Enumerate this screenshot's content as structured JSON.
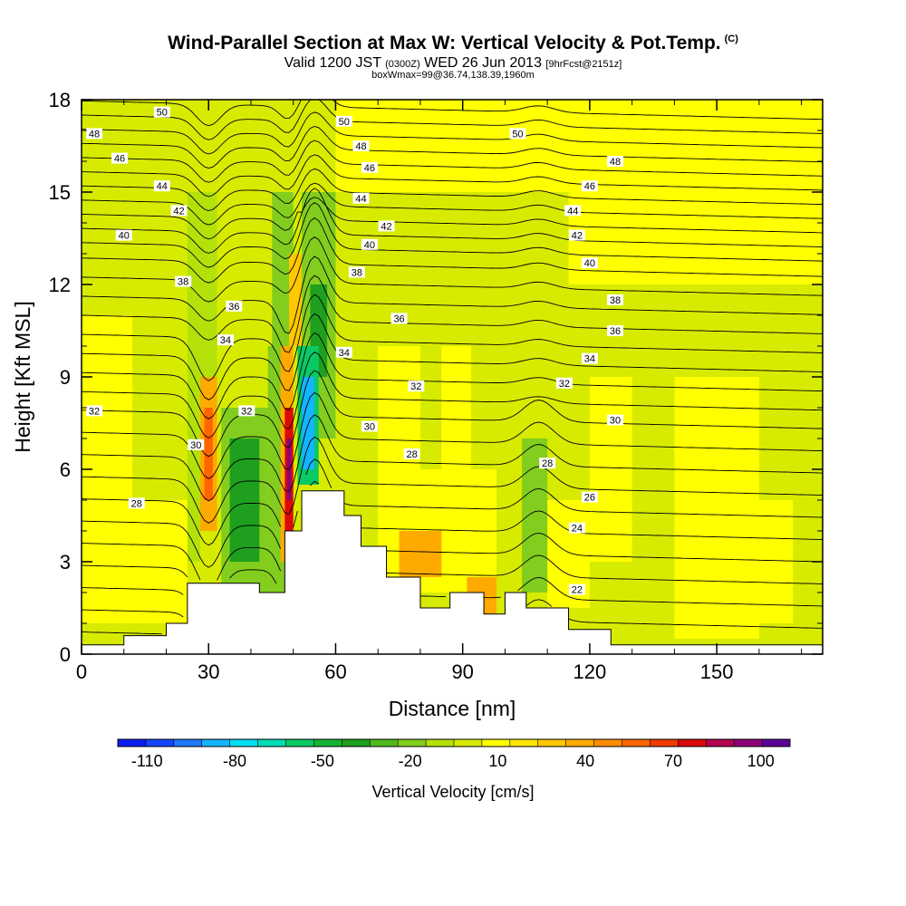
{
  "header": {
    "title": "Wind-Parallel Section at Max W: Vertical Velocity & Pot.Temp.",
    "copyright": "(C)",
    "valid_prefix": "Valid 1200 JST",
    "utc_time": "(0300Z)",
    "valid_date": "WED 26 Jun 2013",
    "forecast": "[9hrFcst@2151z]",
    "box_info": "boxWmax=99@36.74,138.39,1960m"
  },
  "chart_data": {
    "type": "heatmap",
    "xlabel": "Distance [nm]",
    "ylabel": "Height [Kft MSL]",
    "xlim": [
      0,
      175
    ],
    "ylim": [
      0,
      18
    ],
    "x_ticks": [
      0,
      30,
      60,
      90,
      120,
      150
    ],
    "y_ticks": [
      0,
      3,
      6,
      9,
      12,
      15,
      18
    ],
    "colorbar": {
      "title": "Vertical Velocity [cm/s]",
      "tick_labels": [
        "-110",
        "-80",
        "-50",
        "-20",
        "10",
        "40",
        "70",
        "100"
      ],
      "tick_values": [
        -110,
        -80,
        -50,
        -20,
        10,
        40,
        70,
        100
      ],
      "bins": [
        -120,
        -110,
        -100,
        -90,
        -80,
        -70,
        -60,
        -50,
        -40,
        -30,
        -20,
        -10,
        0,
        10,
        20,
        30,
        40,
        50,
        60,
        70,
        80,
        90,
        100,
        110
      ],
      "colors": [
        "#0a1ef0",
        "#1446ff",
        "#1e78ff",
        "#14b4ff",
        "#00dcf0",
        "#00dcb4",
        "#0ac864",
        "#14b432",
        "#1ea01e",
        "#50b91e",
        "#82cd1e",
        "#b4e10a",
        "#d7eb00",
        "#ffff00",
        "#ffe600",
        "#ffc800",
        "#ffaa00",
        "#ff8c00",
        "#ff6400",
        "#f03c00",
        "#dc0a0a",
        "#b40050",
        "#8c0078",
        "#5a0096"
      ]
    },
    "velocity_cells": [
      {
        "x": [
          0,
          175
        ],
        "y": [
          0,
          18
        ],
        "w": 5
      },
      {
        "x": [
          0,
          25
        ],
        "y": [
          1,
          5
        ],
        "w": 15
      },
      {
        "x": [
          0,
          12
        ],
        "y": [
          5,
          11
        ],
        "w": 12
      },
      {
        "x": [
          60,
          175
        ],
        "y": [
          15,
          18
        ],
        "w": 15
      },
      {
        "x": [
          115,
          175
        ],
        "y": [
          12,
          18
        ],
        "w": 12
      },
      {
        "x": [
          70,
          80
        ],
        "y": [
          1.5,
          10
        ],
        "w": 15
      },
      {
        "x": [
          80,
          98
        ],
        "y": [
          2,
          6
        ],
        "w": 15
      },
      {
        "x": [
          85,
          92
        ],
        "y": [
          6,
          10
        ],
        "w": 12
      },
      {
        "x": [
          110,
          120
        ],
        "y": [
          1.5,
          5
        ],
        "w": 15
      },
      {
        "x": [
          120,
          130
        ],
        "y": [
          3,
          9
        ],
        "w": 12
      },
      {
        "x": [
          140,
          160
        ],
        "y": [
          0.5,
          9
        ],
        "w": 15
      },
      {
        "x": [
          160,
          168
        ],
        "y": [
          1,
          5
        ],
        "w": 12
      },
      {
        "x": [
          91,
          98
        ],
        "y": [
          1,
          2.5
        ],
        "w": 45
      },
      {
        "x": [
          75,
          85
        ],
        "y": [
          2.5,
          4
        ],
        "w": 40
      },
      {
        "x": [
          25,
          28
        ],
        "y": [
          3,
          8
        ],
        "w": -10
      },
      {
        "x": [
          33,
          44
        ],
        "y": [
          2,
          8
        ],
        "w": -20
      },
      {
        "x": [
          35,
          42
        ],
        "y": [
          3,
          7
        ],
        "w": -35
      },
      {
        "x": [
          25,
          32
        ],
        "y": [
          8,
          15
        ],
        "w": -10
      },
      {
        "x": [
          44,
          48
        ],
        "y": [
          2,
          10
        ],
        "w": -15
      },
      {
        "x": [
          45,
          50
        ],
        "y": [
          10,
          15
        ],
        "w": -15
      },
      {
        "x": [
          52,
          60
        ],
        "y": [
          7,
          15
        ],
        "w": -20
      },
      {
        "x": [
          54,
          58
        ],
        "y": [
          9,
          12
        ],
        "w": -40
      },
      {
        "x": [
          51,
          56
        ],
        "y": [
          5.5,
          10
        ],
        "w": -60
      },
      {
        "x": [
          52,
          55
        ],
        "y": [
          6,
          9
        ],
        "w": -90
      },
      {
        "x": [
          104,
          110
        ],
        "y": [
          2,
          7
        ],
        "w": -15
      },
      {
        "x": [
          28,
          32
        ],
        "y": [
          4,
          9
        ],
        "w": 40
      },
      {
        "x": [
          29,
          31
        ],
        "y": [
          5,
          8
        ],
        "w": 60
      },
      {
        "x": [
          47,
          50
        ],
        "y": [
          3,
          10
        ],
        "w": 40
      },
      {
        "x": [
          48,
          50
        ],
        "y": [
          4,
          8
        ],
        "w": 80
      },
      {
        "x": [
          48.5,
          49.5
        ],
        "y": [
          5,
          7
        ],
        "w": 100
      },
      {
        "x": [
          49,
          52
        ],
        "y": [
          10,
          13
        ],
        "w": 35
      }
    ],
    "terrain_top_kft": [
      {
        "x": [
          0,
          10
        ],
        "h": 0.3
      },
      {
        "x": [
          10,
          20
        ],
        "h": 0.6
      },
      {
        "x": [
          20,
          25
        ],
        "h": 1.0
      },
      {
        "x": [
          25,
          42
        ],
        "h": 2.3
      },
      {
        "x": [
          42,
          48
        ],
        "h": 2.0
      },
      {
        "x": [
          48,
          52
        ],
        "h": 4.0
      },
      {
        "x": [
          52,
          62
        ],
        "h": 5.3
      },
      {
        "x": [
          62,
          66
        ],
        "h": 4.5
      },
      {
        "x": [
          66,
          72
        ],
        "h": 3.5
      },
      {
        "x": [
          72,
          80
        ],
        "h": 2.5
      },
      {
        "x": [
          80,
          87
        ],
        "h": 1.5
      },
      {
        "x": [
          87,
          95
        ],
        "h": 2.0
      },
      {
        "x": [
          95,
          100
        ],
        "h": 1.3
      },
      {
        "x": [
          100,
          105
        ],
        "h": 2.0
      },
      {
        "x": [
          105,
          115
        ],
        "h": 1.5
      },
      {
        "x": [
          115,
          125
        ],
        "h": 0.8
      },
      {
        "x": [
          125,
          175
        ],
        "h": 0.3
      }
    ],
    "theta_contours": {
      "levels": [
        21,
        22,
        23,
        24,
        25,
        26,
        27,
        28,
        29,
        30,
        31,
        32,
        33,
        34,
        35,
        36,
        37,
        38,
        39,
        40,
        41,
        42,
        43,
        44,
        45,
        46,
        47,
        48,
        49,
        50,
        51
      ],
      "labels": [
        {
          "text": "50",
          "x": 19,
          "y": 17.6
        },
        {
          "text": "48",
          "x": 3,
          "y": 16.9
        },
        {
          "text": "46",
          "x": 9,
          "y": 16.1
        },
        {
          "text": "44",
          "x": 19,
          "y": 15.2
        },
        {
          "text": "42",
          "x": 23,
          "y": 14.4
        },
        {
          "text": "40",
          "x": 10,
          "y": 13.6
        },
        {
          "text": "38",
          "x": 24,
          "y": 12.1
        },
        {
          "text": "36",
          "x": 36,
          "y": 11.3
        },
        {
          "text": "34",
          "x": 34,
          "y": 10.2
        },
        {
          "text": "32",
          "x": 3,
          "y": 7.9
        },
        {
          "text": "32",
          "x": 39,
          "y": 7.9
        },
        {
          "text": "30",
          "x": 27,
          "y": 6.8
        },
        {
          "text": "28",
          "x": 13,
          "y": 4.9
        },
        {
          "text": "50",
          "x": 62,
          "y": 17.3
        },
        {
          "text": "48",
          "x": 66,
          "y": 16.5
        },
        {
          "text": "46",
          "x": 68,
          "y": 15.8
        },
        {
          "text": "44",
          "x": 66,
          "y": 14.8
        },
        {
          "text": "42",
          "x": 72,
          "y": 13.9
        },
        {
          "text": "40",
          "x": 68,
          "y": 13.3
        },
        {
          "text": "38",
          "x": 65,
          "y": 12.4
        },
        {
          "text": "36",
          "x": 75,
          "y": 10.9
        },
        {
          "text": "34",
          "x": 62,
          "y": 9.8
        },
        {
          "text": "32",
          "x": 79,
          "y": 8.7
        },
        {
          "text": "30",
          "x": 68,
          "y": 7.4
        },
        {
          "text": "28",
          "x": 78,
          "y": 6.5
        },
        {
          "text": "50",
          "x": 103,
          "y": 16.9
        },
        {
          "text": "48",
          "x": 126,
          "y": 16.0
        },
        {
          "text": "46",
          "x": 120,
          "y": 15.2
        },
        {
          "text": "44",
          "x": 116,
          "y": 14.4
        },
        {
          "text": "42",
          "x": 117,
          "y": 13.6
        },
        {
          "text": "40",
          "x": 120,
          "y": 12.7
        },
        {
          "text": "38",
          "x": 126,
          "y": 11.5
        },
        {
          "text": "36",
          "x": 126,
          "y": 10.5
        },
        {
          "text": "34",
          "x": 120,
          "y": 9.6
        },
        {
          "text": "32",
          "x": 114,
          "y": 8.8
        },
        {
          "text": "30",
          "x": 126,
          "y": 7.6
        },
        {
          "text": "28",
          "x": 110,
          "y": 6.2
        },
        {
          "text": "26",
          "x": 120,
          "y": 5.1
        },
        {
          "text": "24",
          "x": 117,
          "y": 4.1
        },
        {
          "text": "22",
          "x": 117,
          "y": 2.1
        }
      ]
    }
  }
}
